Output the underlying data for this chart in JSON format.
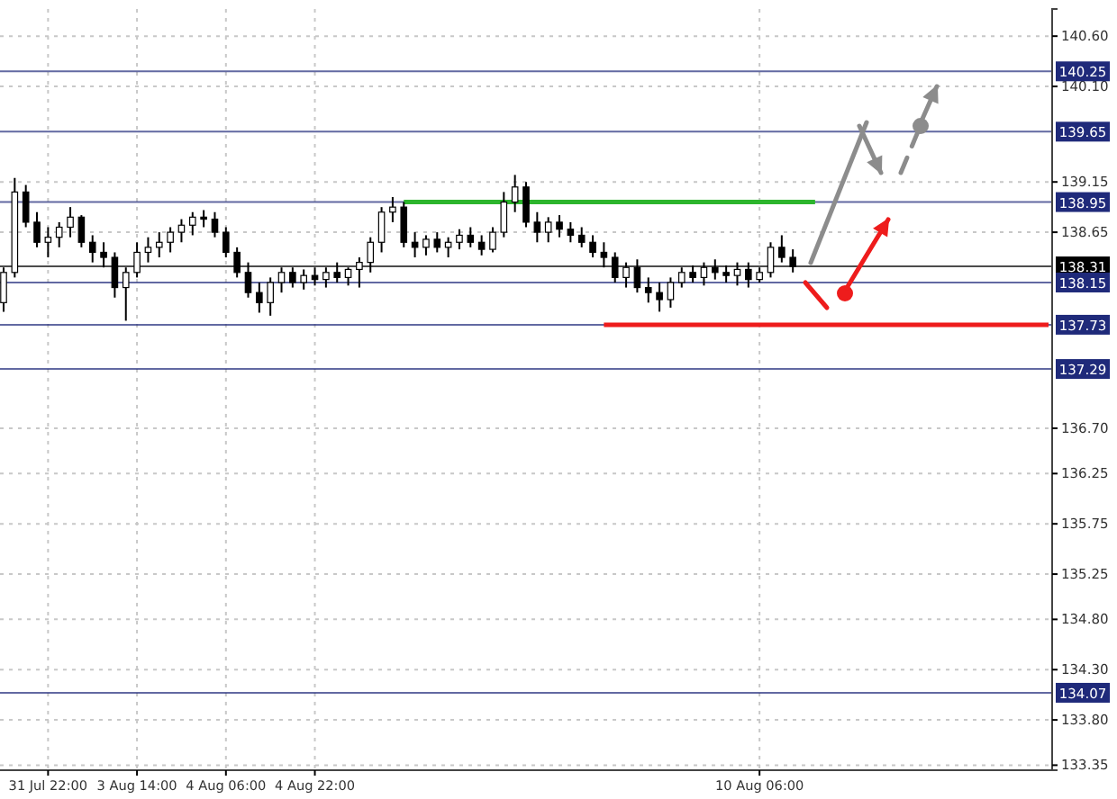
{
  "chart_data": {
    "type": "candlestick",
    "categories": [
      null,
      null,
      null,
      null,
      "31 Jul 22:00",
      null,
      null,
      null,
      null,
      null,
      null,
      null,
      "3 Aug 14:00",
      null,
      null,
      null,
      null,
      null,
      null,
      null,
      "4 Aug 06:00",
      null,
      null,
      null,
      null,
      null,
      null,
      null,
      "4 Aug 22:00",
      null,
      null,
      null,
      null,
      null,
      null,
      null,
      null,
      null,
      null,
      null,
      null,
      null,
      null,
      null,
      null,
      null,
      null,
      null,
      null,
      null,
      null,
      null,
      null,
      null,
      null,
      null,
      null,
      null,
      null,
      null,
      null,
      null,
      null,
      null,
      null,
      null,
      null,
      null,
      "10 Aug 06:00",
      null,
      null,
      null,
      null,
      null,
      null,
      null,
      null,
      null,
      null,
      null,
      null,
      null,
      null,
      null,
      null,
      null,
      null,
      null,
      null,
      null,
      null,
      null,
      null,
      null,
      null
    ],
    "ohlc": [
      [
        137.95,
        138.3,
        137.86,
        138.25
      ],
      [
        138.25,
        139.19,
        138.2,
        139.05
      ],
      [
        139.05,
        139.12,
        138.7,
        138.75
      ],
      [
        138.75,
        138.85,
        138.5,
        138.55
      ],
      [
        138.55,
        138.7,
        138.4,
        138.6
      ],
      [
        138.6,
        138.75,
        138.5,
        138.7
      ],
      [
        138.7,
        138.9,
        138.6,
        138.8
      ],
      [
        138.8,
        138.82,
        138.5,
        138.55
      ],
      [
        138.55,
        138.62,
        138.35,
        138.45
      ],
      [
        138.45,
        138.55,
        138.3,
        138.4
      ],
      [
        138.4,
        138.45,
        138.0,
        138.1
      ],
      [
        138.1,
        138.3,
        137.77,
        138.25
      ],
      [
        138.25,
        138.55,
        138.2,
        138.45
      ],
      [
        138.45,
        138.6,
        138.35,
        138.5
      ],
      [
        138.5,
        138.65,
        138.4,
        138.55
      ],
      [
        138.55,
        138.7,
        138.45,
        138.65
      ],
      [
        138.65,
        138.78,
        138.55,
        138.72
      ],
      [
        138.72,
        138.85,
        138.62,
        138.8
      ],
      [
        138.8,
        138.87,
        138.7,
        138.78
      ],
      [
        138.78,
        138.85,
        138.6,
        138.65
      ],
      [
        138.65,
        138.7,
        138.4,
        138.45
      ],
      [
        138.45,
        138.5,
        138.2,
        138.25
      ],
      [
        138.25,
        138.35,
        138.0,
        138.05
      ],
      [
        138.05,
        138.15,
        137.85,
        137.95
      ],
      [
        137.95,
        138.2,
        137.82,
        138.15
      ],
      [
        138.15,
        138.3,
        138.05,
        138.25
      ],
      [
        138.25,
        138.3,
        138.1,
        138.15
      ],
      [
        138.15,
        138.28,
        138.08,
        138.22
      ],
      [
        138.22,
        138.3,
        138.12,
        138.18
      ],
      [
        138.18,
        138.3,
        138.1,
        138.25
      ],
      [
        138.25,
        138.35,
        138.15,
        138.2
      ],
      [
        138.2,
        138.3,
        138.12,
        138.28
      ],
      [
        138.28,
        138.4,
        138.1,
        138.35
      ],
      [
        138.35,
        138.6,
        138.25,
        138.55
      ],
      [
        138.55,
        138.9,
        138.45,
        138.85
      ],
      [
        138.85,
        139.0,
        138.75,
        138.9
      ],
      [
        138.9,
        138.95,
        138.5,
        138.55
      ],
      [
        138.55,
        138.65,
        138.4,
        138.5
      ],
      [
        138.5,
        138.62,
        138.42,
        138.58
      ],
      [
        138.58,
        138.65,
        138.45,
        138.5
      ],
      [
        138.5,
        138.6,
        138.4,
        138.55
      ],
      [
        138.55,
        138.68,
        138.48,
        138.62
      ],
      [
        138.62,
        138.7,
        138.5,
        138.55
      ],
      [
        138.55,
        138.62,
        138.42,
        138.48
      ],
      [
        138.48,
        138.7,
        138.45,
        138.65
      ],
      [
        138.65,
        139.05,
        138.6,
        138.95
      ],
      [
        138.95,
        139.22,
        138.85,
        139.1
      ],
      [
        139.1,
        139.15,
        138.7,
        138.75
      ],
      [
        138.75,
        138.85,
        138.55,
        138.65
      ],
      [
        138.65,
        138.8,
        138.55,
        138.75
      ],
      [
        138.75,
        138.82,
        138.6,
        138.68
      ],
      [
        138.68,
        138.75,
        138.55,
        138.62
      ],
      [
        138.62,
        138.7,
        138.5,
        138.55
      ],
      [
        138.55,
        138.62,
        138.4,
        138.45
      ],
      [
        138.45,
        138.55,
        138.3,
        138.4
      ],
      [
        138.4,
        138.45,
        138.15,
        138.2
      ],
      [
        138.2,
        138.35,
        138.1,
        138.3
      ],
      [
        138.3,
        138.38,
        138.05,
        138.1
      ],
      [
        138.1,
        138.2,
        137.95,
        138.05
      ],
      [
        138.05,
        138.15,
        137.86,
        137.98
      ],
      [
        137.98,
        138.2,
        137.9,
        138.15
      ],
      [
        138.15,
        138.3,
        138.1,
        138.25
      ],
      [
        138.25,
        138.32,
        138.15,
        138.2
      ],
      [
        138.2,
        138.35,
        138.12,
        138.3
      ],
      [
        138.3,
        138.38,
        138.18,
        138.25
      ],
      [
        138.25,
        138.32,
        138.15,
        138.22
      ],
      [
        138.22,
        138.35,
        138.12,
        138.28
      ],
      [
        138.28,
        138.35,
        138.1,
        138.18
      ],
      [
        138.18,
        138.3,
        138.15,
        138.25
      ],
      [
        138.25,
        138.55,
        138.2,
        138.5
      ],
      [
        138.5,
        138.62,
        138.35,
        138.4
      ],
      [
        138.4,
        138.48,
        138.25,
        138.31
      ],
      null,
      null,
      null,
      null,
      null,
      null,
      null,
      null,
      null,
      null,
      null,
      null,
      null,
      null,
      null,
      null,
      null,
      null,
      null,
      null,
      null,
      null,
      null
    ],
    "series": [
      {
        "type": "line",
        "color": "#2db52d",
        "values": [
          null,
          null,
          null,
          null,
          null,
          null,
          null,
          null,
          null,
          null,
          null,
          null,
          null,
          null,
          null,
          null,
          null,
          null,
          null,
          null,
          null,
          null,
          null,
          null,
          null,
          null,
          null,
          null,
          null,
          null,
          null,
          null,
          null,
          null,
          null,
          null,
          138.95,
          138.95,
          138.95,
          138.95,
          138.95,
          138.95,
          138.95,
          138.95,
          138.95,
          138.95,
          138.95,
          138.95,
          138.95,
          138.95,
          138.95,
          138.95,
          138.95,
          138.95,
          138.95,
          138.95,
          138.95,
          138.95,
          138.95,
          138.95,
          138.95,
          138.95,
          138.95,
          138.95,
          138.95,
          138.95,
          138.95,
          138.95,
          138.95,
          138.95,
          138.95,
          138.95,
          138.95,
          138.95,
          null,
          null,
          null,
          null,
          null,
          null,
          null,
          null,
          null,
          null,
          null,
          null,
          null,
          null,
          null,
          null,
          null,
          null,
          null,
          null,
          null
        ]
      },
      {
        "type": "line",
        "color": "#ee1c1c",
        "values": [
          null,
          null,
          null,
          null,
          null,
          null,
          null,
          null,
          null,
          null,
          null,
          null,
          null,
          null,
          null,
          null,
          null,
          null,
          null,
          null,
          null,
          null,
          null,
          null,
          null,
          null,
          null,
          null,
          null,
          null,
          null,
          null,
          null,
          null,
          null,
          null,
          null,
          null,
          null,
          null,
          null,
          null,
          null,
          null,
          null,
          null,
          null,
          null,
          null,
          null,
          null,
          null,
          null,
          null,
          137.73,
          137.73,
          137.73,
          137.73,
          137.73,
          137.73,
          137.73,
          137.73,
          137.73,
          137.73,
          137.73,
          137.73,
          137.73,
          137.73,
          137.73,
          137.73,
          137.73,
          137.73,
          137.73,
          137.73,
          137.73,
          137.73,
          137.73,
          137.73,
          137.73,
          137.73,
          137.73,
          137.73,
          137.73,
          137.73,
          137.73,
          137.73,
          137.73,
          137.73,
          137.73,
          137.73,
          137.73,
          137.73,
          137.73,
          137.73,
          137.73
        ]
      }
    ],
    "ylim": [
      133.3,
      140.87
    ],
    "yticks": [
      {
        "value": 140.6,
        "label": "140.60"
      },
      {
        "value": 140.1,
        "label": "140.10"
      },
      {
        "value": 139.15,
        "label": "139.15"
      },
      {
        "value": 138.65,
        "label": "138.65"
      },
      {
        "value": 136.7,
        "label": "136.70"
      },
      {
        "value": 136.25,
        "label": "136.25"
      },
      {
        "value": 135.75,
        "label": "135.75"
      },
      {
        "value": 135.25,
        "label": "135.25"
      },
      {
        "value": 134.8,
        "label": "134.80"
      },
      {
        "value": 134.3,
        "label": "134.30"
      },
      {
        "value": 133.8,
        "label": "133.80"
      },
      {
        "value": 133.35,
        "label": "133.35"
      }
    ],
    "ref_lines": [
      {
        "axis": "y",
        "value": 140.25,
        "label": "140.25",
        "color": "#1f2a7a"
      },
      {
        "axis": "y",
        "value": 139.65,
        "label": "139.65",
        "color": "#1f2a7a"
      },
      {
        "axis": "y",
        "value": 138.95,
        "label": "138.95",
        "color": "#1f2a7a"
      },
      {
        "axis": "y",
        "value": 138.31,
        "label": "138.31",
        "color": "#000000"
      },
      {
        "axis": "y",
        "value": 138.15,
        "label": "138.15",
        "color": "#1f2a7a"
      },
      {
        "axis": "y",
        "value": 137.73,
        "label": "137.73",
        "color": "#1f2a7a"
      },
      {
        "axis": "y",
        "value": 137.29,
        "label": "137.29",
        "color": "#1f2a7a"
      },
      {
        "axis": "y",
        "value": 134.07,
        "label": "134.07",
        "color": "#1f2a7a"
      }
    ],
    "grid": true
  }
}
